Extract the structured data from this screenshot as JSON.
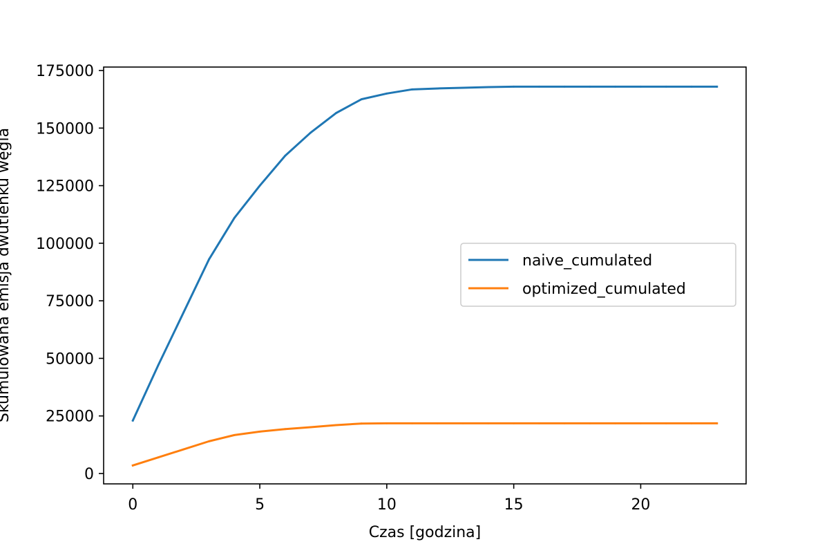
{
  "chart_data": {
    "type": "line",
    "xlabel": "Czas [godzina]",
    "ylabel": "Skumulowana emisja dwutlenku węgla",
    "xlim": [
      -1.15,
      24.15
    ],
    "ylim": [
      -4500,
      176500
    ],
    "x_ticks": [
      0,
      5,
      10,
      15,
      20
    ],
    "y_ticks": [
      0,
      25000,
      50000,
      75000,
      100000,
      125000,
      150000,
      175000
    ],
    "grid": false,
    "legend_position": "center-right",
    "x": [
      0,
      1,
      2,
      3,
      4,
      5,
      6,
      7,
      8,
      9,
      10,
      11,
      12,
      13,
      14,
      15,
      16,
      17,
      18,
      19,
      20,
      21,
      22,
      23
    ],
    "series": [
      {
        "name": "naive_cumulated",
        "color": "#1f77b4",
        "values": [
          23000,
          47000,
          70000,
          93000,
          111000,
          125000,
          138000,
          148000,
          156500,
          162500,
          165000,
          166800,
          167200,
          167500,
          167800,
          168000,
          168000,
          168000,
          168000,
          168000,
          168000,
          168000,
          168000,
          168000
        ]
      },
      {
        "name": "optimized_cumulated",
        "color": "#ff7f0e",
        "values": [
          3500,
          7000,
          10500,
          14000,
          16700,
          18200,
          19300,
          20100,
          21000,
          21700,
          21800,
          21800,
          21800,
          21800,
          21800,
          21800,
          21800,
          21800,
          21800,
          21800,
          21800,
          21800,
          21800,
          21800
        ]
      }
    ]
  }
}
